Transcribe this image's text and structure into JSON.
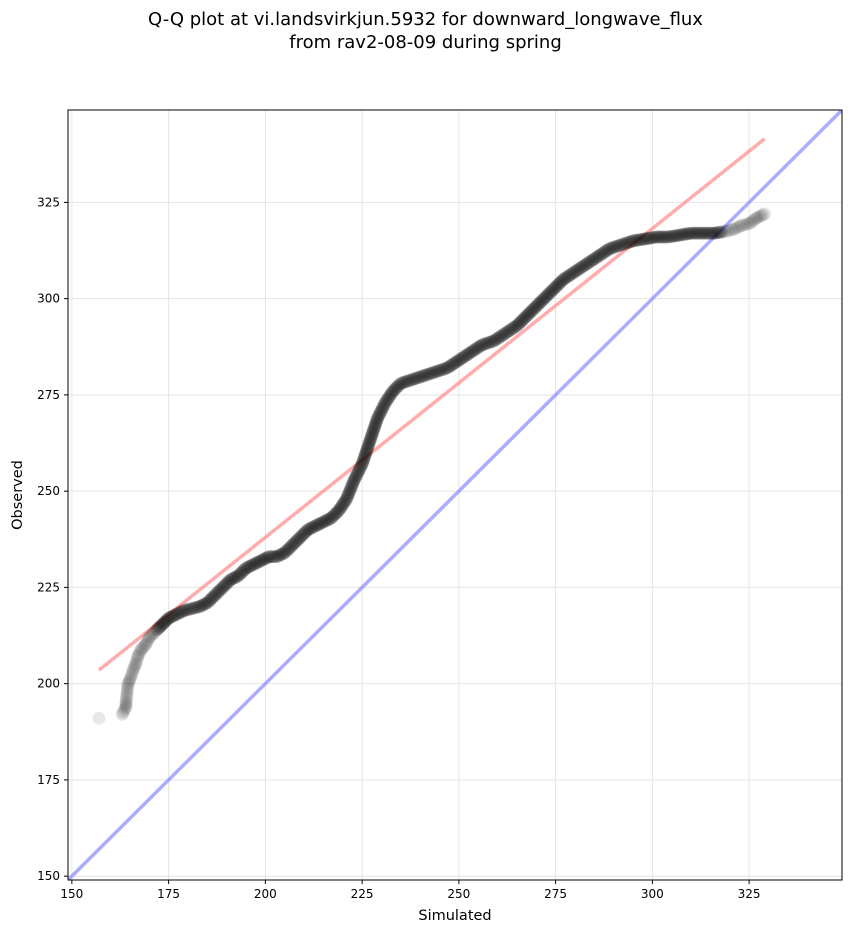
{
  "chart_data": {
    "type": "scatter",
    "title_lines": [
      "Q-Q plot at vi.landsvirkjun.5932 for downward_longwave_flux",
      "from rav2-08-09 during spring"
    ],
    "xlabel": "Simulated",
    "ylabel": "Observed",
    "xlim": [
      149,
      349
    ],
    "ylim": [
      149,
      349
    ],
    "xticks": [
      150,
      175,
      200,
      225,
      250,
      275,
      300,
      325
    ],
    "yticks": [
      150,
      175,
      200,
      225,
      250,
      275,
      300,
      325
    ],
    "grid": true,
    "legend": "none",
    "series": [
      {
        "kind": "quantiles",
        "color": "#000000",
        "points": [
          [
            157,
            191
          ],
          [
            163,
            192
          ],
          [
            164,
            194
          ],
          [
            164,
            195
          ],
          [
            164.5,
            200
          ],
          [
            165,
            201
          ],
          [
            166,
            204
          ],
          [
            166.5,
            205
          ],
          [
            167,
            207
          ],
          [
            168,
            209
          ],
          [
            169,
            210
          ],
          [
            170,
            212
          ],
          [
            171,
            213
          ],
          [
            172,
            214
          ],
          [
            173,
            215
          ],
          [
            174,
            216
          ],
          [
            175,
            217
          ],
          [
            177,
            218
          ],
          [
            179,
            219
          ],
          [
            181,
            219.5
          ],
          [
            183,
            220
          ],
          [
            185,
            221
          ],
          [
            187,
            223
          ],
          [
            189,
            225
          ],
          [
            191,
            227
          ],
          [
            193,
            228
          ],
          [
            195,
            230
          ],
          [
            197,
            231
          ],
          [
            199,
            232
          ],
          [
            201,
            233
          ],
          [
            203,
            233
          ],
          [
            205,
            234
          ],
          [
            207,
            236
          ],
          [
            209,
            238
          ],
          [
            211,
            240
          ],
          [
            213,
            241
          ],
          [
            215,
            242
          ],
          [
            217,
            243
          ],
          [
            219,
            245
          ],
          [
            221,
            248
          ],
          [
            223,
            253
          ],
          [
            225,
            257
          ],
          [
            227,
            263
          ],
          [
            229,
            269
          ],
          [
            231,
            273
          ],
          [
            233,
            276
          ],
          [
            235,
            278
          ],
          [
            238,
            279
          ],
          [
            241,
            280
          ],
          [
            244,
            281
          ],
          [
            247,
            282
          ],
          [
            250,
            284
          ],
          [
            253,
            286
          ],
          [
            256,
            288
          ],
          [
            259,
            289
          ],
          [
            262,
            291
          ],
          [
            265,
            293
          ],
          [
            268,
            296
          ],
          [
            271,
            299
          ],
          [
            274,
            302
          ],
          [
            277,
            305
          ],
          [
            280,
            307
          ],
          [
            283,
            309
          ],
          [
            286,
            311
          ],
          [
            289,
            313
          ],
          [
            292,
            314
          ],
          [
            295,
            315
          ],
          [
            298,
            315.5
          ],
          [
            301,
            316
          ],
          [
            304,
            316
          ],
          [
            307,
            316.5
          ],
          [
            310,
            317
          ],
          [
            313,
            317
          ],
          [
            316,
            317
          ],
          [
            319,
            317.5
          ],
          [
            321,
            318
          ],
          [
            323,
            319
          ],
          [
            325,
            319.5
          ],
          [
            327,
            321
          ],
          [
            328,
            321.5
          ],
          [
            329,
            322
          ]
        ]
      },
      {
        "kind": "fit-line",
        "color": "#ff8080",
        "points": [
          [
            157,
            203.5
          ],
          [
            329,
            341.5
          ]
        ]
      },
      {
        "kind": "identity-line",
        "color": "#8080ff",
        "points": [
          [
            149,
            149
          ],
          [
            349,
            349
          ]
        ]
      }
    ]
  }
}
